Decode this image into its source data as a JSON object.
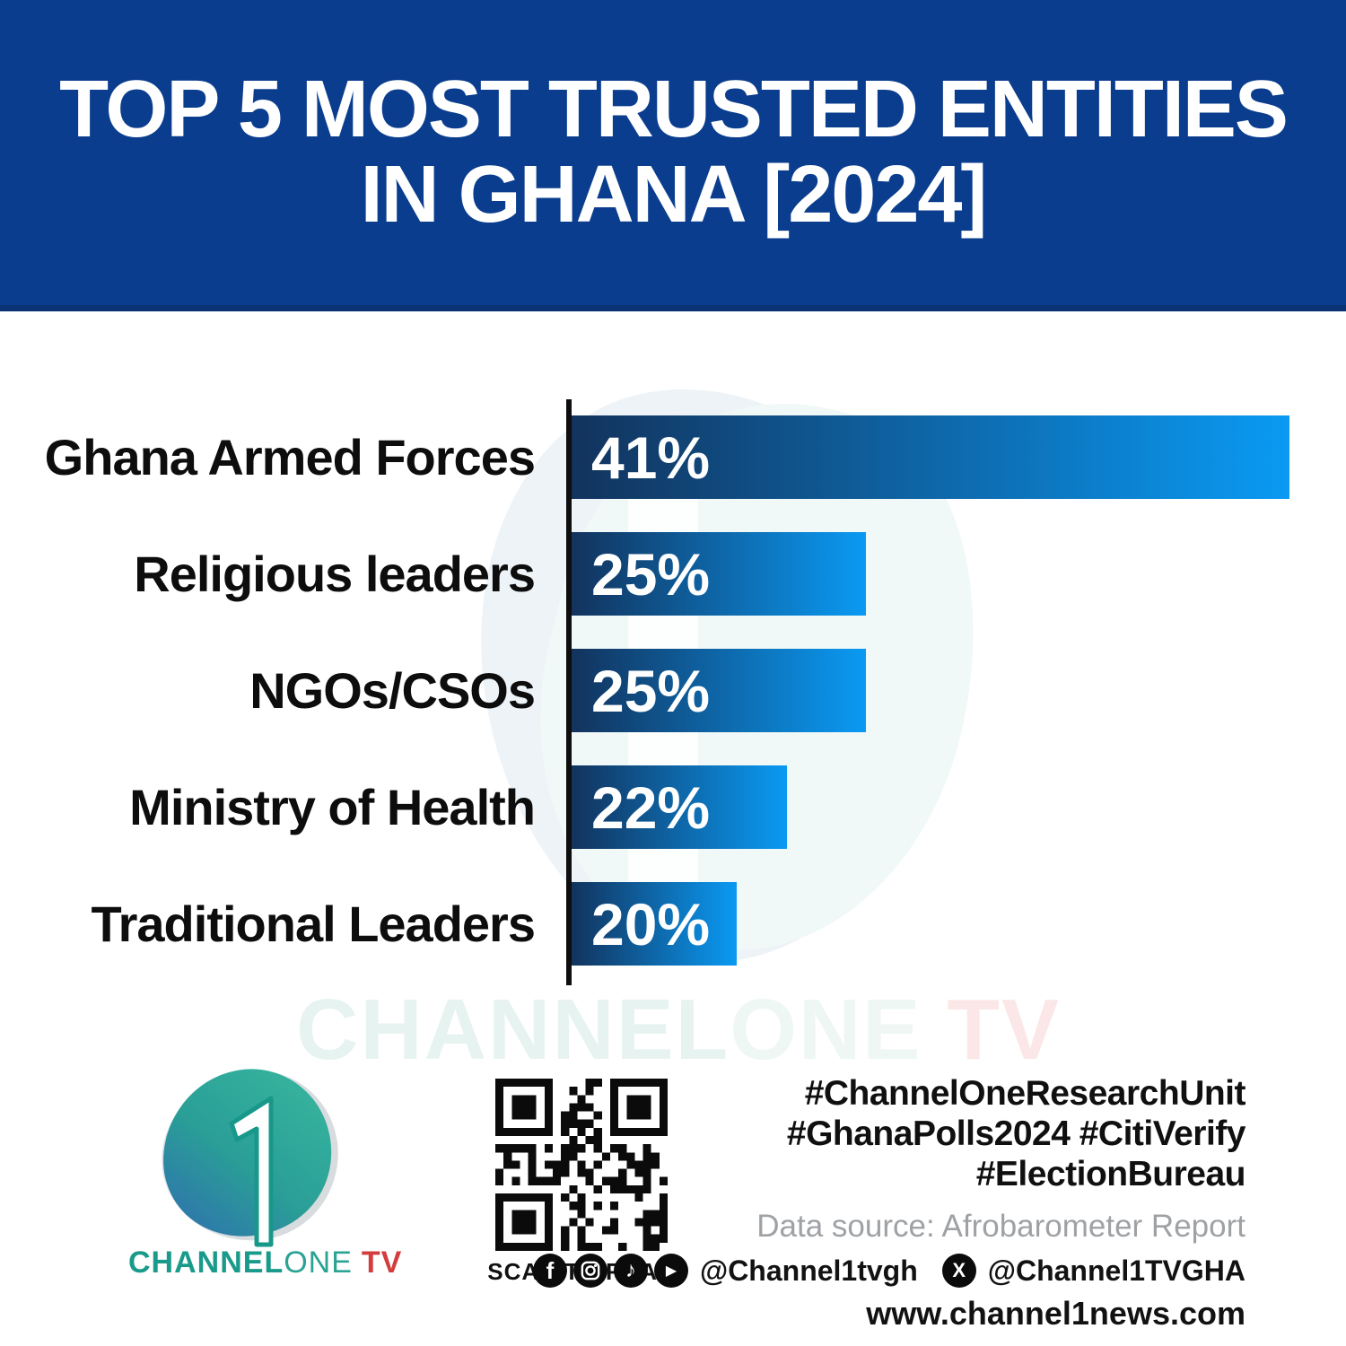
{
  "title": {
    "line1": "TOP 5 MOST TRUSTED ENTITIES",
    "line2": "IN GHANA [2024]"
  },
  "chart_data": {
    "type": "bar",
    "orientation": "horizontal",
    "title": "TOP 5 MOST TRUSTED ENTITIES IN GHANA [2024]",
    "categories": [
      "Ghana Armed Forces",
      "Religious leaders",
      "NGOs/CSOs",
      "Ministry of Health",
      "Traditional Leaders"
    ],
    "values": [
      41,
      25,
      25,
      22,
      20
    ],
    "value_labels": [
      "41%",
      "25%",
      "25%",
      "22%",
      "20%"
    ],
    "unit": "%",
    "grid": false,
    "value_label_position": "inside-left",
    "bar_width_pct_of_max": [
      100,
      41,
      41,
      30,
      23
    ],
    "bar_gradient_from": "#12335d",
    "bar_gradient_to": "#0a9af3",
    "axis_color": "#0e0e0e"
  },
  "watermark": {
    "channel": "CHANNEL",
    "one": "ONE",
    "tv": "TV"
  },
  "logo": {
    "numeral": "1",
    "channel": "CHANNEL",
    "one": "ONE",
    "tv": "TV"
  },
  "qr": {
    "caption": "SCAN TO READ"
  },
  "footer": {
    "hashtags": [
      "#ChannelOneResearchUnit",
      "#GhanaPolls2024 #CitiVerify",
      "#ElectionBureau"
    ],
    "data_source": "Data source: Afrobarometer Report",
    "social_handle_1": "@Channel1tvgh",
    "social_handle_2": "@Channel1TVGHA",
    "website": "www.channel1news.com",
    "facebook_glyph": "f",
    "tiktok_glyph": "♪",
    "youtube_glyph": "▶",
    "x_glyph": "X"
  },
  "colors": {
    "banner_blue": "#0a3d8e",
    "bar_dark": "#12335d",
    "bar_light": "#0a9af3",
    "logo_teal": "#199a8b",
    "logo_red": "#d43d3d",
    "source_gray": "#9fa2a5"
  }
}
